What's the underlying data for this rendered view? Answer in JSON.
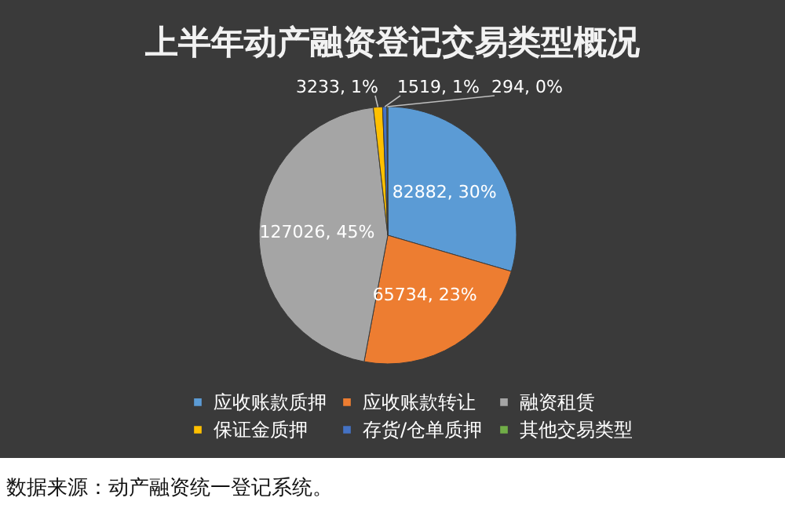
{
  "chart_data": {
    "type": "pie",
    "title": "上半年动产融资登记交易类型概况",
    "categories": [
      "应收账款质押",
      "应收账款转让",
      "融资租赁",
      "保证金质押",
      "存货/仓单质押",
      "其他交易类型"
    ],
    "values": [
      82882,
      65734,
      127026,
      3233,
      1519,
      294
    ],
    "colors": [
      "#5b9bd5",
      "#ed7d31",
      "#a5a5a5",
      "#ffc000",
      "#4472c4",
      "#70ad47"
    ],
    "value_labels": [
      "82882, 30%",
      "65734, 23%",
      "127026, 45%",
      "3233, 1%",
      "1519, 1%",
      "294, 0%"
    ],
    "legend": "bottom",
    "annotations": [
      "数据来源：动产融资统一登记系统。"
    ]
  }
}
